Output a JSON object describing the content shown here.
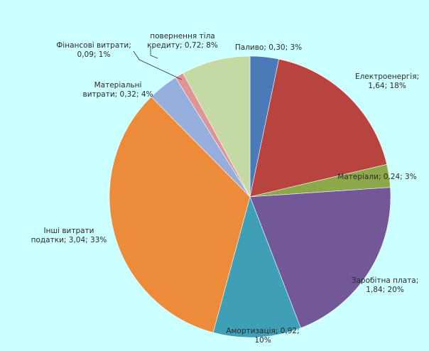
{
  "chart_data": {
    "type": "pie",
    "start_angle_deg": 0,
    "direction": "clockwise",
    "slices": [
      {
        "label": "Паливо; 0,30; 3%",
        "category": "Паливо",
        "value": 0.3,
        "percent": 3,
        "color": "#4a7ab8"
      },
      {
        "label": "Електроенергія; 1,64; 18%",
        "category": "Електроенергія",
        "value": 1.64,
        "percent": 18,
        "color": "#b8443f"
      },
      {
        "label": "Матеріали; 0,24; 3%",
        "category": "Матеріали",
        "value": 0.24,
        "percent": 3,
        "color": "#8ca84a"
      },
      {
        "label": "Заробітна плата; 1,84; 20%",
        "category": "Заробітна плата",
        "value": 1.84,
        "percent": 20,
        "color": "#735898"
      },
      {
        "label": "Амортизація; 0,92; 10%",
        "category": "Амортизація",
        "value": 0.92,
        "percent": 10,
        "color": "#3f9fb6"
      },
      {
        "label": "Інші витрати податки; 3,04; 33%",
        "category": "Інші витрати податки",
        "value": 3.04,
        "percent": 33,
        "color": "#ec8b3a"
      },
      {
        "label": "Матеріальні витрати; 0,32; 4%",
        "category": "Матеріальні витрати",
        "value": 0.32,
        "percent": 4,
        "color": "#96aedc"
      },
      {
        "label": "Фінансові витрати; 0,09; 1%",
        "category": "Фінансові витрати",
        "value": 0.09,
        "percent": 1,
        "color": "#de9595"
      },
      {
        "label": "повернення тіла кредиту; 0,72; 8%",
        "category": "повернення тіла кредиту",
        "value": 0.72,
        "percent": 8,
        "color": "#c5d9a4"
      }
    ],
    "labels_display": [
      [
        "Паливо; 0,30; 3%"
      ],
      [
        "Електроенергія;",
        "1,64; 18%"
      ],
      [
        "Матеріали; 0,24; 3%"
      ],
      [
        "Заробітна плата;",
        "1,84; 20%"
      ],
      [
        "Амортизація; 0,92;",
        "10%"
      ],
      [
        "Інші витрати",
        "податки; 3,04; 33%"
      ],
      [
        "Матеріальні",
        "витрати; 0,32; 4%"
      ],
      [
        "Фінансові витрати;",
        "0,09; 1%"
      ],
      [
        "повернення тіла",
        "кредиту; 0,72; 8%"
      ]
    ]
  }
}
